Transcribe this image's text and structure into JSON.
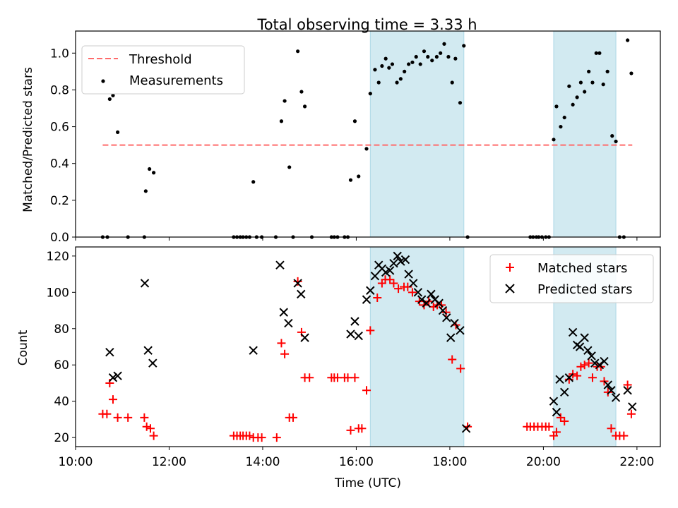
{
  "title": "Total observing time = 3.33 h",
  "colors": {
    "shade": "#add8e6",
    "threshold": "#ff6b6b",
    "matched": "#ff0000",
    "predicted": "#000000",
    "measurement": "#000000"
  },
  "chart_data": [
    {
      "type": "scatter",
      "ylabel": "Matched/Predicted stars",
      "xlim": [
        10.0,
        22.5
      ],
      "ylim": [
        0.0,
        1.12
      ],
      "yticks": [
        0.0,
        0.2,
        0.4,
        0.6,
        0.8,
        1.0
      ],
      "ytick_labels": [
        "0.0",
        "0.2",
        "0.4",
        "0.6",
        "0.8",
        "1.0"
      ],
      "legend": {
        "position": "top-left",
        "entries": [
          {
            "label": "Threshold",
            "marker": "dashed-line"
          },
          {
            "label": "Measurements",
            "marker": "dot"
          }
        ]
      },
      "shaded_intervals": [
        [
          16.3,
          18.3
        ],
        [
          20.22,
          21.55
        ]
      ],
      "threshold": {
        "value": 0.5,
        "x": [
          10.58,
          21.9
        ]
      },
      "series": [
        {
          "name": "Measurements",
          "points": [
            [
              10.58,
              0.0
            ],
            [
              10.68,
              0.0
            ],
            [
              10.73,
              0.75
            ],
            [
              10.8,
              0.77
            ],
            [
              10.9,
              0.57
            ],
            [
              11.12,
              0.0
            ],
            [
              11.47,
              0.0
            ],
            [
              11.5,
              0.25
            ],
            [
              11.58,
              0.37
            ],
            [
              11.67,
              0.35
            ],
            [
              13.38,
              0.0
            ],
            [
              13.45,
              0.0
            ],
            [
              13.52,
              0.0
            ],
            [
              13.58,
              0.0
            ],
            [
              13.65,
              0.0
            ],
            [
              13.72,
              0.0
            ],
            [
              13.8,
              0.3
            ],
            [
              13.87,
              0.0
            ],
            [
              13.98,
              0.0
            ],
            [
              14.28,
              0.0
            ],
            [
              14.4,
              0.63
            ],
            [
              14.47,
              0.74
            ],
            [
              14.57,
              0.38
            ],
            [
              14.65,
              0.0
            ],
            [
              14.75,
              1.01
            ],
            [
              14.83,
              0.79
            ],
            [
              14.9,
              0.71
            ],
            [
              15.05,
              0.0
            ],
            [
              15.47,
              0.0
            ],
            [
              15.53,
              0.0
            ],
            [
              15.6,
              0.0
            ],
            [
              15.75,
              0.0
            ],
            [
              15.82,
              0.0
            ],
            [
              15.88,
              0.31
            ],
            [
              15.97,
              0.63
            ],
            [
              16.05,
              0.33
            ],
            [
              16.22,
              0.48
            ],
            [
              16.3,
              0.78
            ],
            [
              16.4,
              0.91
            ],
            [
              16.48,
              0.84
            ],
            [
              16.55,
              0.93
            ],
            [
              16.63,
              0.97
            ],
            [
              16.7,
              0.92
            ],
            [
              16.77,
              0.94
            ],
            [
              16.87,
              0.84
            ],
            [
              16.95,
              0.86
            ],
            [
              17.03,
              0.9
            ],
            [
              17.12,
              0.94
            ],
            [
              17.2,
              0.95
            ],
            [
              17.28,
              0.98
            ],
            [
              17.37,
              0.94
            ],
            [
              17.45,
              1.01
            ],
            [
              17.53,
              0.98
            ],
            [
              17.62,
              0.96
            ],
            [
              17.72,
              0.98
            ],
            [
              17.8,
              1.0
            ],
            [
              17.88,
              1.05
            ],
            [
              17.97,
              0.98
            ],
            [
              18.05,
              0.84
            ],
            [
              18.12,
              0.97
            ],
            [
              18.22,
              0.73
            ],
            [
              18.3,
              1.04
            ],
            [
              18.38,
              0.0
            ],
            [
              19.72,
              0.0
            ],
            [
              19.78,
              0.0
            ],
            [
              19.85,
              0.0
            ],
            [
              19.9,
              0.0
            ],
            [
              19.97,
              0.0
            ],
            [
              20.05,
              0.0
            ],
            [
              20.12,
              0.0
            ],
            [
              20.22,
              0.53
            ],
            [
              20.28,
              0.71
            ],
            [
              20.37,
              0.6
            ],
            [
              20.45,
              0.65
            ],
            [
              20.55,
              0.82
            ],
            [
              20.63,
              0.72
            ],
            [
              20.72,
              0.76
            ],
            [
              20.8,
              0.84
            ],
            [
              20.88,
              0.79
            ],
            [
              20.97,
              0.9
            ],
            [
              21.05,
              0.84
            ],
            [
              21.13,
              1.0
            ],
            [
              21.2,
              1.0
            ],
            [
              21.28,
              0.83
            ],
            [
              21.37,
              0.9
            ],
            [
              21.47,
              0.55
            ],
            [
              21.55,
              0.52
            ],
            [
              21.63,
              0.0
            ],
            [
              21.72,
              0.0
            ],
            [
              21.8,
              1.07
            ],
            [
              21.88,
              0.89
            ]
          ]
        }
      ]
    },
    {
      "type": "scatter",
      "xlabel": "Time (UTC)",
      "ylabel": "Count",
      "xlim": [
        10.0,
        22.5
      ],
      "ylim": [
        15,
        125
      ],
      "xticks": [
        10,
        12,
        14,
        16,
        18,
        20,
        22
      ],
      "xtick_labels": [
        "10:00",
        "12:00",
        "14:00",
        "16:00",
        "18:00",
        "20:00",
        "22:00"
      ],
      "yticks": [
        20,
        40,
        60,
        80,
        100,
        120
      ],
      "ytick_labels": [
        "20",
        "40",
        "60",
        "80",
        "100",
        "120"
      ],
      "legend": {
        "position": "top-right",
        "entries": [
          {
            "label": "Matched stars",
            "marker": "plus"
          },
          {
            "label": "Predicted stars",
            "marker": "x"
          }
        ]
      },
      "shaded_intervals": [
        [
          16.3,
          18.3
        ],
        [
          20.22,
          21.55
        ]
      ],
      "series": [
        {
          "name": "Matched stars",
          "marker": "plus",
          "points": [
            [
              10.58,
              33
            ],
            [
              10.67,
              33
            ],
            [
              10.73,
              50
            ],
            [
              10.8,
              41
            ],
            [
              10.9,
              31
            ],
            [
              11.12,
              31
            ],
            [
              11.47,
              31
            ],
            [
              11.52,
              26
            ],
            [
              11.6,
              25
            ],
            [
              11.67,
              21
            ],
            [
              13.38,
              21
            ],
            [
              13.45,
              21
            ],
            [
              13.52,
              21
            ],
            [
              13.58,
              21
            ],
            [
              13.65,
              21
            ],
            [
              13.72,
              21
            ],
            [
              13.8,
              20
            ],
            [
              13.9,
              20
            ],
            [
              13.98,
              20
            ],
            [
              14.3,
              20
            ],
            [
              14.4,
              72
            ],
            [
              14.47,
              66
            ],
            [
              14.57,
              31
            ],
            [
              14.65,
              31
            ],
            [
              14.75,
              106
            ],
            [
              14.83,
              78
            ],
            [
              14.9,
              53
            ],
            [
              15.0,
              53
            ],
            [
              15.47,
              53
            ],
            [
              15.53,
              53
            ],
            [
              15.6,
              53
            ],
            [
              15.75,
              53
            ],
            [
              15.82,
              53
            ],
            [
              15.88,
              24
            ],
            [
              15.97,
              53
            ],
            [
              16.05,
              25
            ],
            [
              16.12,
              25
            ],
            [
              16.22,
              46
            ],
            [
              16.3,
              79
            ],
            [
              16.45,
              97
            ],
            [
              16.55,
              105
            ],
            [
              16.62,
              107
            ],
            [
              16.72,
              107
            ],
            [
              16.8,
              105
            ],
            [
              16.9,
              102
            ],
            [
              17.02,
              103
            ],
            [
              17.1,
              103
            ],
            [
              17.2,
              100
            ],
            [
              17.35,
              95
            ],
            [
              17.45,
              93
            ],
            [
              17.55,
              95
            ],
            [
              17.65,
              92
            ],
            [
              17.73,
              93
            ],
            [
              17.82,
              93
            ],
            [
              17.92,
              89
            ],
            [
              18.05,
              63
            ],
            [
              18.13,
              82
            ],
            [
              18.23,
              58
            ],
            [
              18.38,
              26
            ],
            [
              19.65,
              26
            ],
            [
              19.72,
              26
            ],
            [
              19.8,
              26
            ],
            [
              19.88,
              26
            ],
            [
              19.97,
              26
            ],
            [
              20.05,
              26
            ],
            [
              20.12,
              26
            ],
            [
              20.22,
              21
            ],
            [
              20.28,
              23
            ],
            [
              20.37,
              31
            ],
            [
              20.45,
              29
            ],
            [
              20.55,
              52
            ],
            [
              20.63,
              55
            ],
            [
              20.72,
              54
            ],
            [
              20.8,
              59
            ],
            [
              20.88,
              60
            ],
            [
              20.97,
              61
            ],
            [
              21.05,
              53
            ],
            [
              21.15,
              59
            ],
            [
              21.23,
              59
            ],
            [
              21.3,
              51
            ],
            [
              21.38,
              45
            ],
            [
              21.45,
              25
            ],
            [
              21.55,
              21
            ],
            [
              21.63,
              21
            ],
            [
              21.72,
              21
            ],
            [
              21.8,
              49
            ],
            [
              21.88,
              33
            ]
          ]
        },
        {
          "name": "Predicted stars",
          "marker": "x",
          "points": [
            [
              10.73,
              67
            ],
            [
              10.8,
              53
            ],
            [
              10.9,
              54
            ],
            [
              11.48,
              105
            ],
            [
              11.55,
              68
            ],
            [
              11.65,
              61
            ],
            [
              13.8,
              68
            ],
            [
              14.37,
              115
            ],
            [
              14.45,
              89
            ],
            [
              14.55,
              83
            ],
            [
              14.75,
              105
            ],
            [
              14.82,
              99
            ],
            [
              14.9,
              75
            ],
            [
              15.88,
              77
            ],
            [
              15.97,
              84
            ],
            [
              16.05,
              76
            ],
            [
              16.22,
              96
            ],
            [
              16.3,
              101
            ],
            [
              16.4,
              109
            ],
            [
              16.48,
              115
            ],
            [
              16.55,
              113
            ],
            [
              16.63,
              111
            ],
            [
              16.72,
              112
            ],
            [
              16.8,
              116
            ],
            [
              16.88,
              120
            ],
            [
              16.95,
              117
            ],
            [
              17.05,
              118
            ],
            [
              17.12,
              110
            ],
            [
              17.22,
              105
            ],
            [
              17.32,
              100
            ],
            [
              17.4,
              96
            ],
            [
              17.5,
              94
            ],
            [
              17.6,
              99
            ],
            [
              17.68,
              96
            ],
            [
              17.77,
              94
            ],
            [
              17.85,
              90
            ],
            [
              17.93,
              86
            ],
            [
              18.02,
              75
            ],
            [
              18.1,
              83
            ],
            [
              18.22,
              79
            ],
            [
              18.35,
              25
            ],
            [
              20.22,
              40
            ],
            [
              20.28,
              34
            ],
            [
              20.35,
              52
            ],
            [
              20.45,
              45
            ],
            [
              20.55,
              53
            ],
            [
              20.63,
              78
            ],
            [
              20.72,
              71
            ],
            [
              20.78,
              70
            ],
            [
              20.88,
              75
            ],
            [
              20.95,
              68
            ],
            [
              21.03,
              65
            ],
            [
              21.1,
              61
            ],
            [
              21.2,
              60
            ],
            [
              21.3,
              62
            ],
            [
              21.38,
              49
            ],
            [
              21.45,
              46
            ],
            [
              21.55,
              42
            ],
            [
              21.8,
              46
            ],
            [
              21.9,
              37
            ]
          ]
        }
      ]
    }
  ]
}
